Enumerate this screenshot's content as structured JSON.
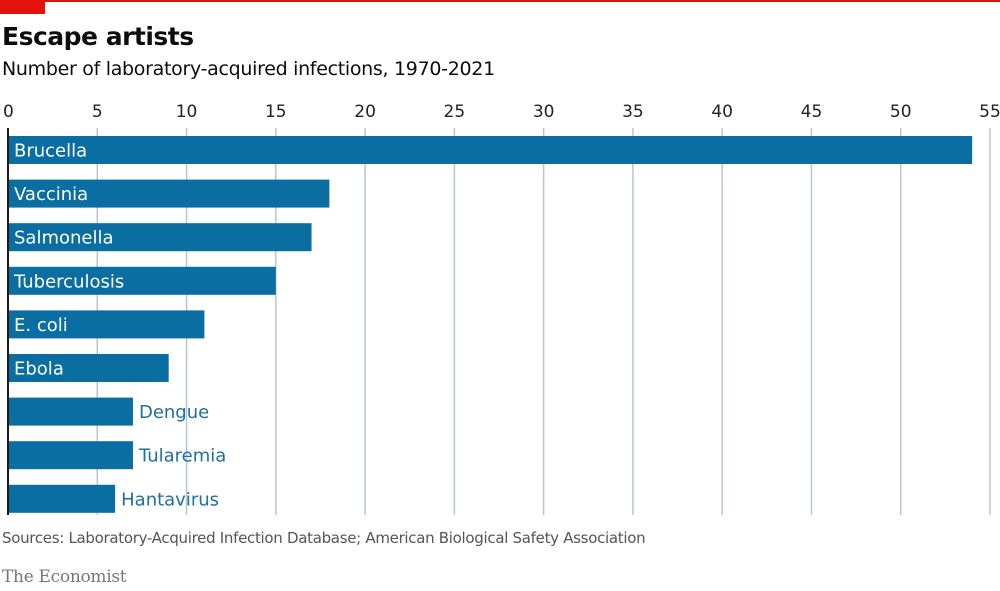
{
  "header": {
    "title": "Escape artists",
    "subtitle": "Number of laboratory-acquired infections, 1970-2021"
  },
  "footer": {
    "source": "Sources: Laboratory-Acquired Infection Database; American Biological Safety Association",
    "brand": "The Economist"
  },
  "colors": {
    "accent": "#e3120b",
    "bar": "#0a6ea3",
    "gridline": "#b7c6d3",
    "outside_label": "#1f6fa0"
  },
  "chart_data": {
    "type": "bar",
    "orientation": "horizontal",
    "title": "Escape artists",
    "subtitle": "Number of laboratory-acquired infections, 1970-2021",
    "xlabel": "",
    "ylabel": "",
    "categories": [
      "Brucella",
      "Vaccinia",
      "Salmonella",
      "Tuberculosis",
      "E. coli",
      "Ebola",
      "Dengue",
      "Tularemia",
      "Hantavirus"
    ],
    "values": [
      54,
      18,
      17,
      15,
      11,
      9,
      7,
      7,
      6
    ],
    "xlim": [
      0,
      55
    ],
    "xticks": [
      0,
      5,
      10,
      15,
      20,
      25,
      30,
      35,
      40,
      45,
      50,
      55
    ],
    "tick_labels": [
      "0",
      "5",
      "10",
      "15",
      "20",
      "25",
      "30",
      "35",
      "40",
      "45",
      "50",
      "55"
    ],
    "grid": true,
    "axis_position": "top",
    "legend": "none",
    "label_inside_threshold": 8
  }
}
